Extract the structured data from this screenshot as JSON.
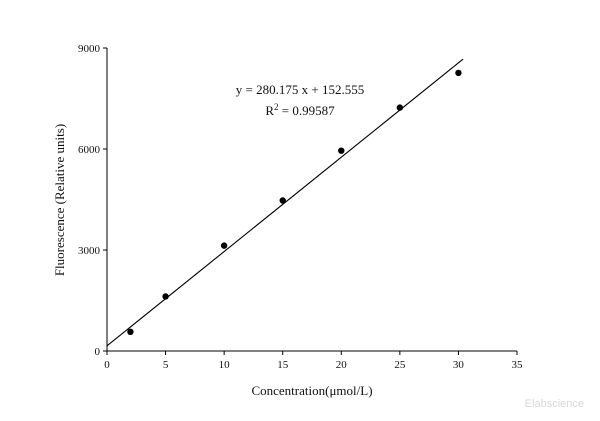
{
  "chart_data": {
    "type": "scatter",
    "xlabel": "Concentration(μmol/L)",
    "ylabel": "Fluorescence (Relative units)",
    "xlim": [
      0,
      35
    ],
    "ylim": [
      0,
      9000
    ],
    "xticks": [
      0,
      5,
      10,
      15,
      20,
      25,
      30,
      35
    ],
    "yticks": [
      0,
      3000,
      6000,
      9000
    ],
    "grid": false,
    "series": [
      {
        "x": [
          2,
          5,
          10,
          15,
          20,
          25,
          30
        ],
        "y": [
          570,
          1620,
          3130,
          4470,
          5950,
          7230,
          8260
        ],
        "color": "#000000"
      }
    ],
    "fit": {
      "slope": 280.175,
      "intercept": 152.555,
      "x_range": [
        0,
        30.4
      ],
      "color": "#000000"
    },
    "annotations": {
      "equation": "y = 280.175 x + 152.555",
      "r2_label": "R",
      "r2_sup": "2",
      "r2_value": " = 0.99587"
    },
    "watermark": "Elabscience"
  }
}
